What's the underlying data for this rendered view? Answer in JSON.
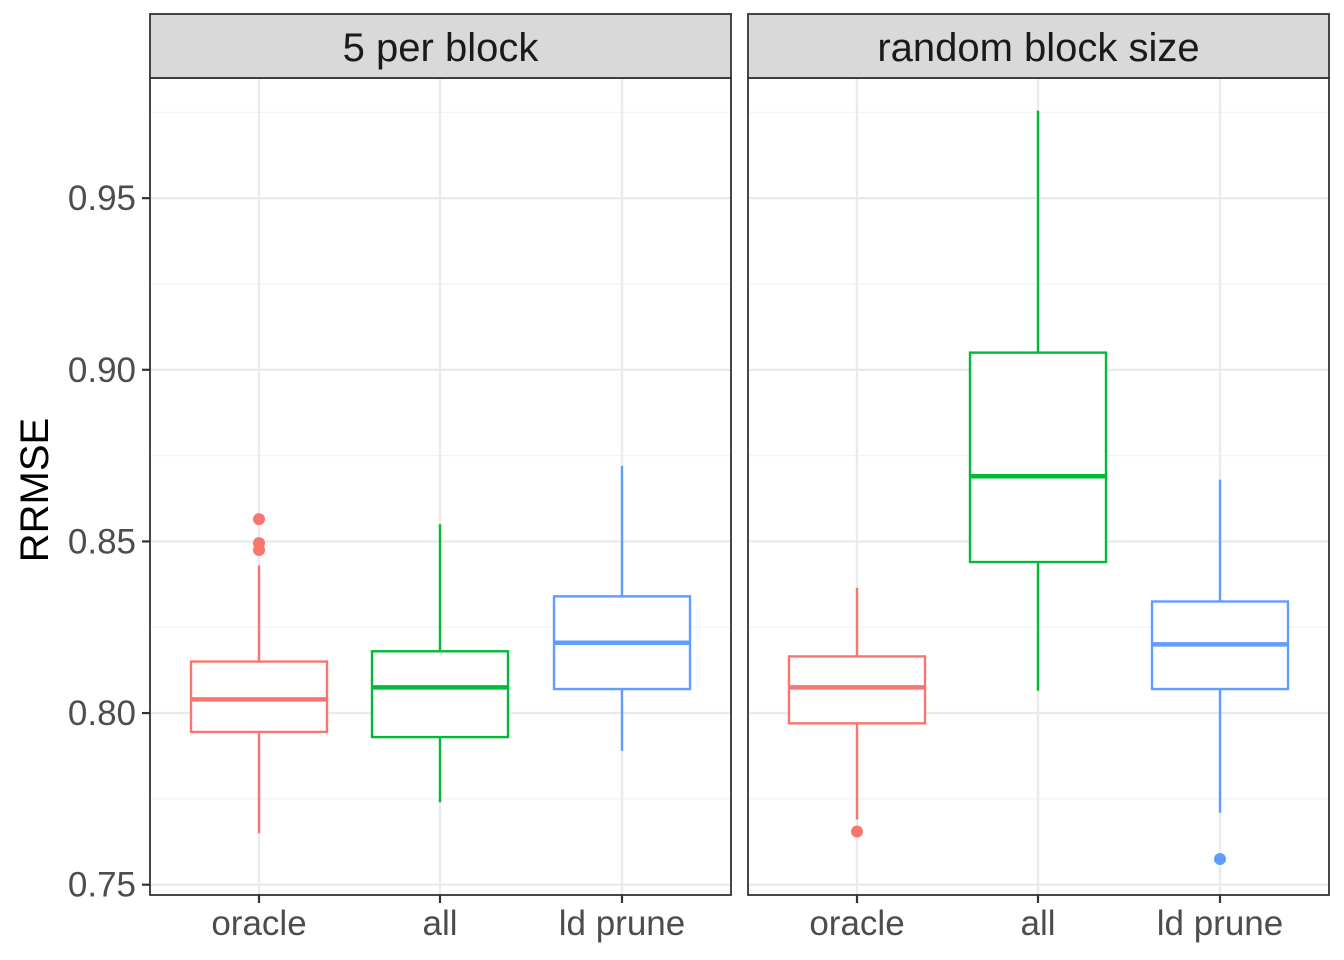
{
  "chart_data": {
    "type": "boxplot",
    "ylabel": "RRMSE",
    "ylim": [
      0.747,
      0.985
    ],
    "yticks": [
      0.75,
      0.8,
      0.85,
      0.9,
      0.95
    ],
    "ytick_labels": [
      "0.75",
      "0.80",
      "0.85",
      "0.90",
      "0.95"
    ],
    "categories": [
      "oracle",
      "all",
      "ld prune"
    ],
    "colors": {
      "oracle": "#F8766D",
      "all": "#00BA38",
      "ld prune": "#619CFF"
    },
    "grid": true,
    "legend": "none",
    "panels": [
      {
        "strip": "5 per block",
        "boxes": [
          {
            "category": "oracle",
            "whisker_low": 0.765,
            "q1": 0.7945,
            "median": 0.804,
            "q3": 0.815,
            "whisker_high": 0.843,
            "outliers": [
              0.8475,
              0.8495,
              0.8565
            ]
          },
          {
            "category": "all",
            "whisker_low": 0.774,
            "q1": 0.793,
            "median": 0.8075,
            "q3": 0.818,
            "whisker_high": 0.855,
            "outliers": []
          },
          {
            "category": "ld prune",
            "whisker_low": 0.789,
            "q1": 0.807,
            "median": 0.8205,
            "q3": 0.834,
            "whisker_high": 0.872,
            "outliers": []
          }
        ]
      },
      {
        "strip": "random block size",
        "boxes": [
          {
            "category": "oracle",
            "whisker_low": 0.769,
            "q1": 0.797,
            "median": 0.8075,
            "q3": 0.8165,
            "whisker_high": 0.8365,
            "outliers": [
              0.7655
            ]
          },
          {
            "category": "all",
            "whisker_low": 0.8065,
            "q1": 0.844,
            "median": 0.869,
            "q3": 0.905,
            "whisker_high": 0.9755,
            "outliers": []
          },
          {
            "category": "ld prune",
            "whisker_low": 0.771,
            "q1": 0.807,
            "median": 0.82,
            "q3": 0.8325,
            "whisker_high": 0.868,
            "outliers": [
              0.7575
            ]
          }
        ]
      }
    ]
  }
}
